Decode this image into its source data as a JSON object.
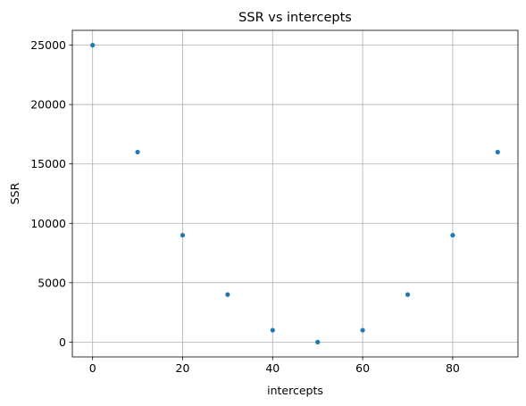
{
  "chart_data": {
    "type": "scatter",
    "title": "SSR vs intercepts",
    "xlabel": "intercepts",
    "ylabel": "SSR",
    "xlim": [
      -4.5,
      94.5
    ],
    "ylim": [
      -1250,
      26250
    ],
    "xticks": [
      0,
      20,
      40,
      60,
      80
    ],
    "yticks": [
      0,
      5000,
      10000,
      15000,
      20000,
      25000
    ],
    "grid": true,
    "marker_color": "#1f77b4",
    "series": [
      {
        "x": [
          0,
          10,
          20,
          30,
          40,
          50,
          60,
          70,
          80,
          90
        ],
        "y": [
          25000,
          16000,
          9000,
          4000,
          1000,
          0,
          1000,
          4000,
          9000,
          16000
        ]
      }
    ]
  }
}
